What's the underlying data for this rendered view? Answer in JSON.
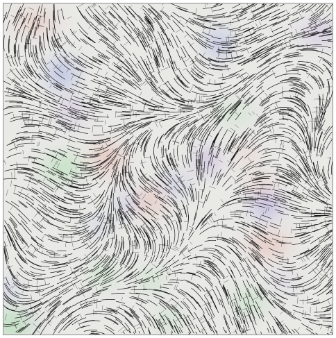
{
  "image": {
    "kind": "vector-field line-integral texture",
    "icon": "texture-field-icon",
    "colors": {
      "background": "#e9e9e6",
      "ink": "#1a1a1a",
      "accent_blue": "#5a6ee0",
      "accent_green": "#6fd07a",
      "accent_red": "#e07a6a",
      "accent_purple": "#9a7ad8"
    }
  }
}
